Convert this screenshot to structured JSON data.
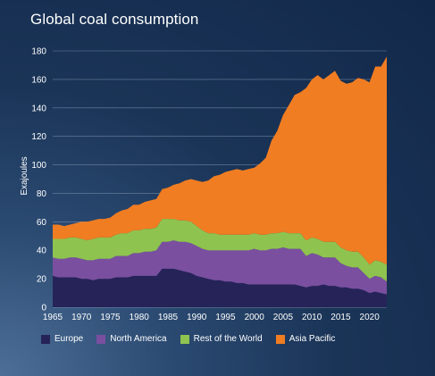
{
  "chart_data": {
    "type": "area",
    "stacked": true,
    "title": "Global coal consumption",
    "ylabel": "Exajoules",
    "xlabel": "",
    "ylim": [
      0,
      180
    ],
    "xlim": [
      1965,
      2023
    ],
    "yticks": [
      0,
      20,
      40,
      60,
      80,
      100,
      120,
      140,
      160,
      180
    ],
    "xticks": [
      1965,
      1970,
      1975,
      1980,
      1985,
      1990,
      1995,
      2000,
      2005,
      2010,
      2015,
      2020
    ],
    "grid": "horizontal",
    "legend_position": "bottom",
    "x": [
      1965,
      1966,
      1967,
      1968,
      1969,
      1970,
      1971,
      1972,
      1973,
      1974,
      1975,
      1976,
      1977,
      1978,
      1979,
      1980,
      1981,
      1982,
      1983,
      1984,
      1985,
      1986,
      1987,
      1988,
      1989,
      1990,
      1991,
      1992,
      1993,
      1994,
      1995,
      1996,
      1997,
      1998,
      1999,
      2000,
      2001,
      2002,
      2003,
      2004,
      2005,
      2006,
      2007,
      2008,
      2009,
      2010,
      2011,
      2012,
      2013,
      2014,
      2015,
      2016,
      2017,
      2018,
      2019,
      2020,
      2021,
      2022,
      2023
    ],
    "series": [
      {
        "name": "Europe",
        "color": "#262358",
        "values": [
          22,
          21,
          21,
          21,
          21,
          20,
          20,
          19,
          20,
          20,
          20,
          21,
          21,
          21,
          22,
          22,
          22,
          22,
          22,
          27,
          27,
          27,
          26,
          25,
          24,
          22,
          21,
          20,
          19,
          19,
          18,
          18,
          17,
          17,
          16,
          16,
          16,
          16,
          16,
          16,
          16,
          16,
          16,
          15,
          14,
          15,
          15,
          16,
          15,
          15,
          14,
          14,
          13,
          13,
          12,
          10,
          11,
          10,
          9
        ]
      },
      {
        "name": "North America",
        "color": "#7a4fa0",
        "values": [
          13,
          13,
          13,
          14,
          14,
          14,
          13,
          14,
          14,
          14,
          14,
          15,
          15,
          15,
          16,
          16,
          17,
          17,
          18,
          19,
          19,
          20,
          20,
          21,
          21,
          21,
          20,
          20,
          21,
          21,
          22,
          22,
          23,
          23,
          24,
          25,
          24,
          24,
          25,
          25,
          26,
          25,
          25,
          26,
          22,
          23,
          22,
          19,
          20,
          20,
          17,
          15,
          15,
          15,
          12,
          10,
          11,
          11,
          9
        ]
      },
      {
        "name": "Rest of the World",
        "color": "#8fc34f",
        "values": [
          13,
          14,
          14,
          14,
          14,
          14,
          14,
          15,
          15,
          15,
          15,
          15,
          16,
          16,
          16,
          16,
          16,
          16,
          16,
          16,
          16,
          15,
          15,
          15,
          15,
          14,
          13,
          12,
          12,
          11,
          11,
          11,
          11,
          11,
          11,
          11,
          11,
          11,
          11,
          11,
          11,
          11,
          11,
          11,
          11,
          11,
          11,
          11,
          11,
          11,
          11,
          11,
          11,
          11,
          11,
          10,
          11,
          11,
          12
        ]
      },
      {
        "name": "Asia Pacific",
        "color": "#f07d22",
        "values": [
          10,
          10,
          9,
          9,
          10,
          12,
          13,
          13,
          13,
          13,
          14,
          15,
          16,
          17,
          18,
          18,
          19,
          20,
          20,
          21,
          22,
          24,
          26,
          28,
          30,
          32,
          34,
          37,
          40,
          42,
          44,
          45,
          46,
          45,
          46,
          46,
          50,
          54,
          65,
          72,
          82,
          90,
          97,
          99,
          107,
          111,
          115,
          114,
          117,
          120,
          117,
          117,
          119,
          122,
          125,
          128,
          136,
          137,
          146
        ]
      }
    ]
  },
  "legend": {
    "europe": "Europe",
    "north_america": "North America",
    "rest_of_world": "Rest of the World",
    "asia_pacific": "Asia Pacific"
  },
  "colors": {
    "background": "#1a3457",
    "gridline": "#8fa3bd"
  }
}
